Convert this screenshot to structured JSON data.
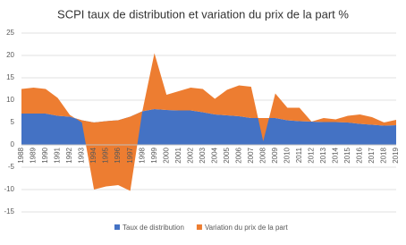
{
  "chart_data": {
    "type": "stacked_area",
    "title": "SCPI taux de distribution et variation du prix de la part %",
    "categories": [
      "1988",
      "1989",
      "1990",
      "1991",
      "1992",
      "1993",
      "1994",
      "1995",
      "1996",
      "1997",
      "1998",
      "1999",
      "2000",
      "2001",
      "2002",
      "2003",
      "2004",
      "2005",
      "2006",
      "2007",
      "2008",
      "2009",
      "2010",
      "2011",
      "2012",
      "2013",
      "2014",
      "2015",
      "2016",
      "2017",
      "2018",
      "2019"
    ],
    "series": [
      {
        "name": "Taux de distribution",
        "color": "#4472c4",
        "values": [
          7,
          7,
          7,
          6.5,
          6.3,
          5.5,
          5,
          5.3,
          5.5,
          6.3,
          7.5,
          8,
          7.8,
          7.7,
          7.7,
          7.3,
          6.8,
          6.6,
          6.4,
          6,
          6,
          6,
          5.5,
          5.3,
          5.2,
          5.1,
          5.1,
          5,
          4.7,
          4.5,
          4.3,
          4.4
        ]
      },
      {
        "name": "Variation du prix de la part",
        "color": "#ed7d31",
        "values": [
          5.5,
          5.8,
          5.5,
          4,
          0.4,
          -0.5,
          -15,
          -14.6,
          -14.5,
          -16.6,
          0,
          12.5,
          3.4,
          4.3,
          5.1,
          5.2,
          3.5,
          5.7,
          6.9,
          7,
          -5.2,
          5.5,
          2.8,
          3,
          0,
          0.9,
          0.6,
          1.5,
          2.1,
          1.7,
          0.7,
          1.2
        ]
      }
    ],
    "ylim": [
      -15,
      25
    ],
    "yticks": [
      -15,
      -10,
      -5,
      0,
      5,
      10,
      15,
      20,
      25
    ],
    "grid": true
  }
}
